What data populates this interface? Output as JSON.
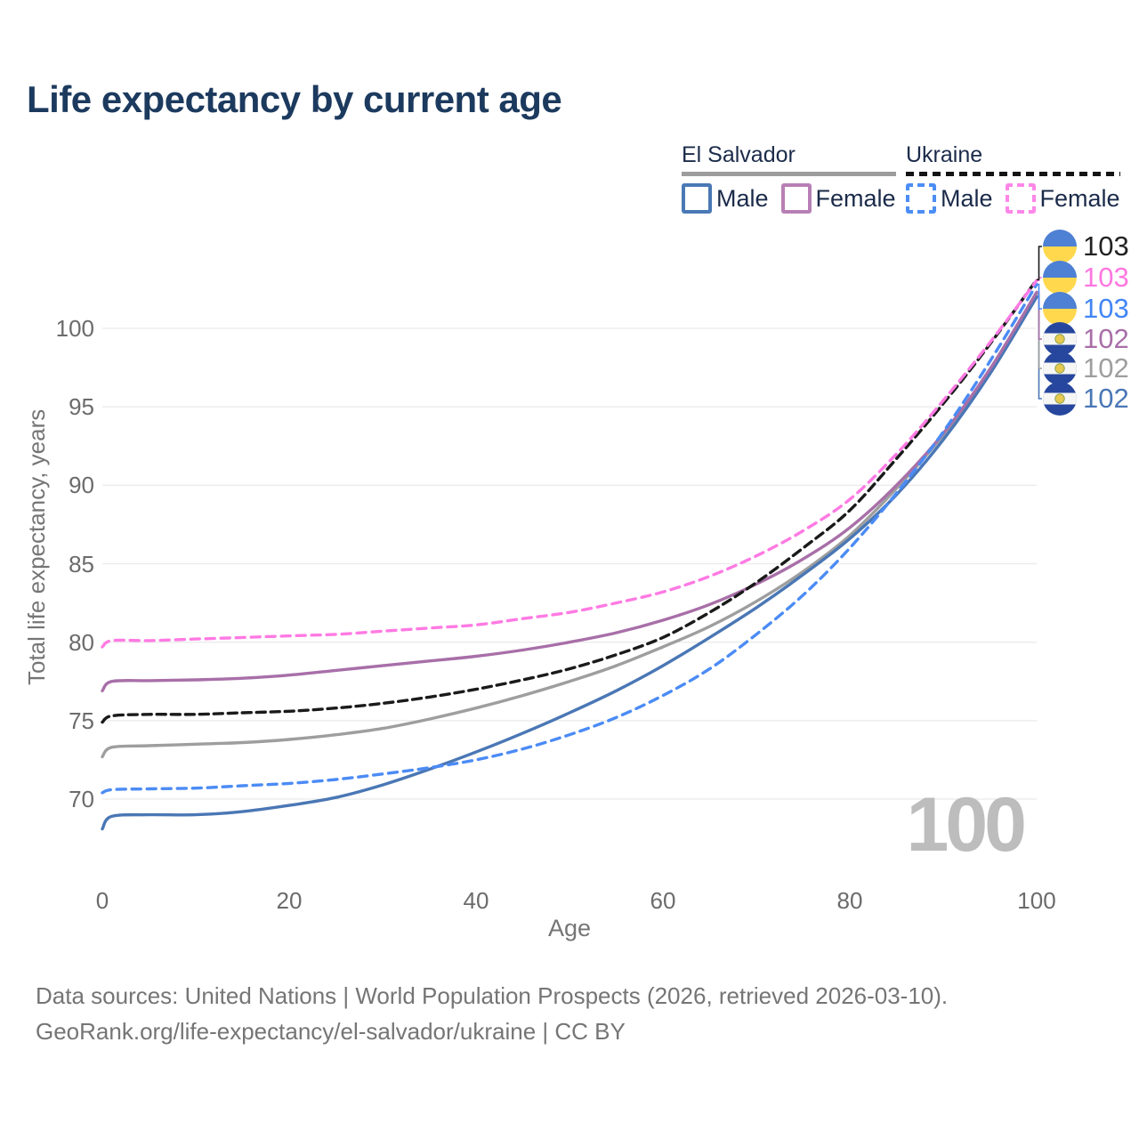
{
  "header": {
    "title": "Life expectancy by current age"
  },
  "legend": {
    "groups": [
      {
        "label": "El Salvador",
        "line_style": "solid",
        "underline_color": "#9c9c9c",
        "items": [
          {
            "label": "Male",
            "color": "#4a79b5",
            "dashed": false
          },
          {
            "label": "Female",
            "color": "#b77fb5",
            "dashed": false
          }
        ]
      },
      {
        "label": "Ukraine",
        "line_style": "dashed",
        "underline_color": "#141414",
        "items": [
          {
            "label": "Male",
            "color": "#4c8df6",
            "dashed": true
          },
          {
            "label": "Female",
            "color": "#ff87e9",
            "dashed": true
          }
        ]
      }
    ]
  },
  "axes": {
    "y": {
      "title": "Total life expectancy, years",
      "ticks": [
        100,
        95,
        90,
        85,
        80,
        75,
        70
      ],
      "range": [
        70,
        100
      ]
    },
    "x": {
      "title": "Age",
      "ticks": [
        0,
        20,
        40,
        60,
        80,
        100
      ],
      "range": [
        0,
        100
      ]
    }
  },
  "watermark": {
    "value": "100"
  },
  "end_labels": [
    {
      "value": "103",
      "color": "#222222",
      "flag": "ukraine",
      "series_index": 4
    },
    {
      "value": "103",
      "color": "#ff77e0",
      "flag": "ukraine",
      "series_index": 5
    },
    {
      "value": "103",
      "color": "#4285f4",
      "flag": "ukraine",
      "series_index": 3
    },
    {
      "value": "102",
      "color": "#a86fa8",
      "flag": "el-salvador",
      "series_index": 2
    },
    {
      "value": "102",
      "color": "#9e9e9e",
      "flag": "el-salvador",
      "series_index": 1
    },
    {
      "value": "102",
      "color": "#4a77b5",
      "flag": "el-salvador",
      "series_index": 0
    }
  ],
  "footer": {
    "line1": "Data sources: United Nations | World Population Prospects (2026, retrieved 2026-03-10).",
    "line2": "GeoRank.org/life-expectancy/el-salvador/ukraine | CC BY"
  },
  "chart_data": {
    "type": "line",
    "title": "Life expectancy by current age",
    "xlabel": "Age",
    "ylabel": "Total life expectancy, years",
    "xlim": [
      0,
      100
    ],
    "ylim": [
      70,
      100
    ],
    "grid": true,
    "legend_position": "top-right",
    "x": [
      0,
      1,
      5,
      10,
      15,
      20,
      25,
      30,
      35,
      40,
      45,
      50,
      55,
      60,
      65,
      70,
      75,
      80,
      85,
      90,
      95,
      100
    ],
    "series": [
      {
        "name": "El Salvador Male",
        "country": "El Salvador",
        "sex": "Male",
        "color": "#4a77b5",
        "dash": null,
        "end_label": "102",
        "values": [
          68.1,
          68.9,
          69.0,
          69.0,
          69.2,
          69.6,
          70.1,
          70.9,
          71.9,
          73.0,
          74.2,
          75.5,
          76.9,
          78.5,
          80.3,
          82.2,
          84.3,
          86.6,
          89.4,
          92.9,
          97.1,
          102.0
        ]
      },
      {
        "name": "El Salvador Both sexes",
        "country": "El Salvador",
        "sex": "Both sexes",
        "color": "#9e9e9e",
        "dash": null,
        "end_label": "102",
        "values": [
          72.7,
          73.3,
          73.4,
          73.5,
          73.6,
          73.8,
          74.1,
          74.5,
          75.1,
          75.8,
          76.6,
          77.5,
          78.5,
          79.7,
          81.0,
          82.6,
          84.5,
          86.8,
          89.8,
          93.2,
          97.3,
          102.15
        ]
      },
      {
        "name": "El Salvador Female",
        "country": "El Salvador",
        "sex": "Female",
        "color": "#a86fa8",
        "dash": null,
        "end_label": "102",
        "values": [
          76.9,
          77.5,
          77.55,
          77.6,
          77.7,
          77.9,
          78.2,
          78.5,
          78.8,
          79.1,
          79.5,
          80.0,
          80.6,
          81.4,
          82.4,
          83.7,
          85.3,
          87.3,
          90.0,
          93.3,
          97.4,
          102.3
        ]
      },
      {
        "name": "Ukraine Male",
        "country": "Ukraine",
        "sex": "Male",
        "color": "#4b8bf5",
        "dash": "10 7",
        "end_label": "103",
        "values": [
          70.4,
          70.6,
          70.65,
          70.7,
          70.85,
          71.0,
          71.25,
          71.6,
          72.0,
          72.5,
          73.2,
          74.1,
          75.2,
          76.6,
          78.3,
          80.5,
          83.0,
          86.0,
          89.5,
          93.4,
          97.9,
          102.8
        ]
      },
      {
        "name": "Ukraine Both sexes",
        "country": "Ukraine",
        "sex": "Both sexes",
        "color": "#1a1a1a",
        "dash": "10 6",
        "end_label": "103",
        "values": [
          74.9,
          75.3,
          75.4,
          75.4,
          75.5,
          75.6,
          75.8,
          76.1,
          76.5,
          77.0,
          77.6,
          78.3,
          79.2,
          80.3,
          81.9,
          83.8,
          86.0,
          88.4,
          91.7,
          95.2,
          99.0,
          103.1
        ]
      },
      {
        "name": "Ukraine Female",
        "country": "Ukraine",
        "sex": "Female",
        "color": "#ff7ae3",
        "dash": "10 7",
        "end_label": "103",
        "values": [
          79.7,
          80.1,
          80.1,
          80.2,
          80.3,
          80.4,
          80.5,
          80.7,
          80.9,
          81.1,
          81.5,
          81.9,
          82.5,
          83.2,
          84.2,
          85.5,
          87.1,
          89.1,
          92.0,
          95.4,
          99.1,
          103.05
        ]
      }
    ]
  }
}
